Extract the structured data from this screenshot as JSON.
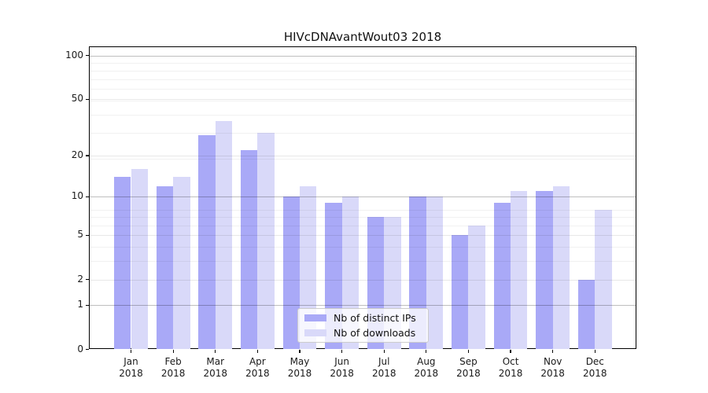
{
  "chart_data": {
    "type": "bar",
    "title": "HIVcDNAvantWout03 2018",
    "categories": [
      "Jan",
      "Feb",
      "Mar",
      "Apr",
      "May",
      "Jun",
      "Jul",
      "Aug",
      "Sep",
      "Oct",
      "Nov",
      "Dec"
    ],
    "year_label": "2018",
    "series": [
      {
        "name": "Nb of distinct IPs",
        "color": "#a9a9f7",
        "values": [
          14,
          12,
          28,
          22,
          10,
          9,
          7,
          10,
          5,
          9,
          11,
          2
        ]
      },
      {
        "name": "Nb of downloads",
        "color": "#d9d9f9",
        "values": [
          16,
          14,
          35,
          29,
          12,
          10,
          7,
          10,
          6,
          11,
          12,
          8
        ]
      }
    ],
    "y_axis": {
      "scale": "log10(value+1)",
      "tick_values": [
        0,
        1,
        2,
        5,
        10,
        20,
        50,
        100
      ],
      "max_value": 116,
      "major_grid_values": [
        1,
        10,
        100
      ],
      "light_grid_values": [
        2,
        5,
        20,
        50
      ],
      "minor_grid_values": [
        3,
        4,
        6,
        7,
        8,
        19,
        29,
        39,
        49,
        59,
        69,
        79,
        89
      ]
    },
    "xlabel": "",
    "ylabel": "",
    "grid": true,
    "legend_position": "lower center"
  }
}
